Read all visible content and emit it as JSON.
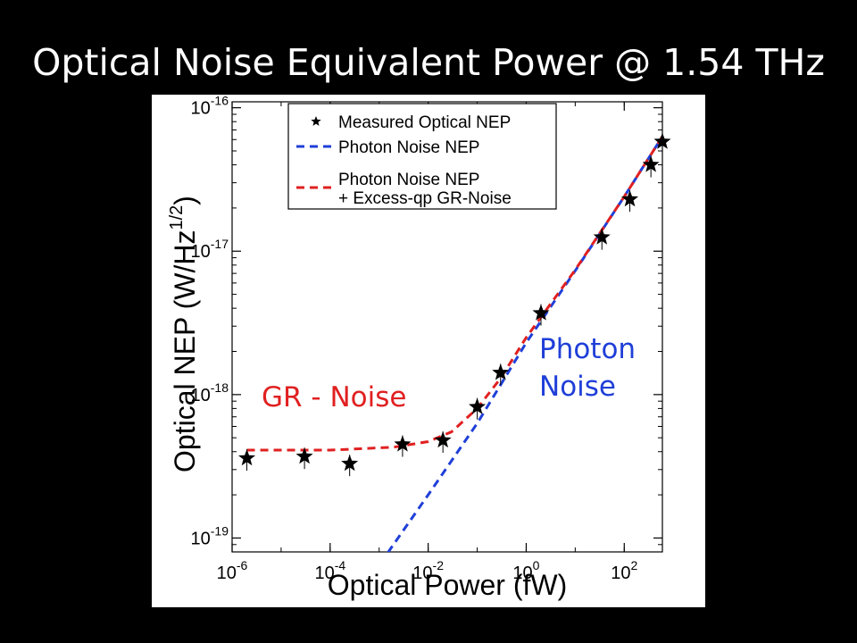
{
  "slide": {
    "title": "Optical Noise Equivalent Power @ 1.54 THz"
  },
  "annotations": {
    "gr_noise": {
      "text": "GR - Noise",
      "color": "#e02020"
    },
    "photon_noise": {
      "lines": [
        "Photon",
        "Noise"
      ],
      "color": "#1f3fd8"
    }
  },
  "chart_data": {
    "type": "scatter",
    "title": "",
    "xlabel": "Optical Power (fW)",
    "ylabel_main": "Optical NEP (W/Hz",
    "ylabel_exponent": "1/2",
    "ylabel_close": ")",
    "x_scale": "log",
    "y_scale": "log",
    "xlim": [
      1e-06,
      600
    ],
    "ylim": [
      8e-20,
      1.1e-16
    ],
    "grid": false,
    "legend_position": "top-right",
    "x_ticks": [
      {
        "value": 1e-06,
        "base": "10",
        "exp": "-6"
      },
      {
        "value": 0.0001,
        "base": "10",
        "exp": "-4"
      },
      {
        "value": 0.01,
        "base": "10",
        "exp": "-2"
      },
      {
        "value": 1,
        "base": "10",
        "exp": "0"
      },
      {
        "value": 100,
        "base": "10",
        "exp": "2"
      }
    ],
    "y_ticks": [
      {
        "value": 1e-19,
        "base": "10",
        "exp": "-19"
      },
      {
        "value": 1e-18,
        "base": "10",
        "exp": "-18"
      },
      {
        "value": 1e-17,
        "base": "10",
        "exp": "-17"
      },
      {
        "value": 1e-16,
        "base": "10",
        "exp": "-16"
      }
    ],
    "legend": [
      {
        "lines": [
          "Measured Optical NEP"
        ],
        "marker": "star",
        "color": "#000000"
      },
      {
        "lines": [
          "Photon Noise NEP"
        ],
        "marker": "dash",
        "color": "#1f3fd8"
      },
      {
        "lines": [
          "Photon Noise NEP",
          "+ Excess-qp GR-Noise"
        ],
        "marker": "dash",
        "color": "#e02020"
      }
    ],
    "series": [
      {
        "name": "Measured Optical NEP",
        "kind": "points",
        "color": "#000000",
        "x": [
          2e-06,
          3e-05,
          0.00025,
          0.003,
          0.02,
          0.1,
          0.3,
          2,
          35,
          130,
          350,
          600
        ],
        "y": [
          3.6e-19,
          3.7e-19,
          3.3e-19,
          4.5e-19,
          4.8e-19,
          8.2e-19,
          1.42e-18,
          3.7e-18,
          1.25e-17,
          2.3e-17,
          4e-17,
          5.8e-17
        ]
      },
      {
        "name": "Photon Noise NEP",
        "kind": "line",
        "color": "#1f3fd8",
        "x": [
          0.0015,
          0.01,
          0.1,
          1,
          10,
          100,
          600
        ],
        "y": [
          7.9e-20,
          2e-19,
          6.3e-19,
          2.3e-18,
          7.3e-18,
          2.4e-17,
          6.3e-17
        ]
      },
      {
        "name": "Photon Noise NEP + Excess-qp GR-Noise",
        "kind": "line",
        "color": "#e02020",
        "x": [
          2e-06,
          0.0001,
          0.002,
          0.01,
          0.03,
          0.1,
          0.3,
          1,
          10,
          100,
          600
        ],
        "y": [
          4.1e-19,
          4.1e-19,
          4.3e-19,
          4.7e-19,
          5.5e-19,
          8e-19,
          1.3e-18,
          2.5e-18,
          7.4e-18,
          2.4e-17,
          6.3e-17
        ]
      }
    ]
  }
}
